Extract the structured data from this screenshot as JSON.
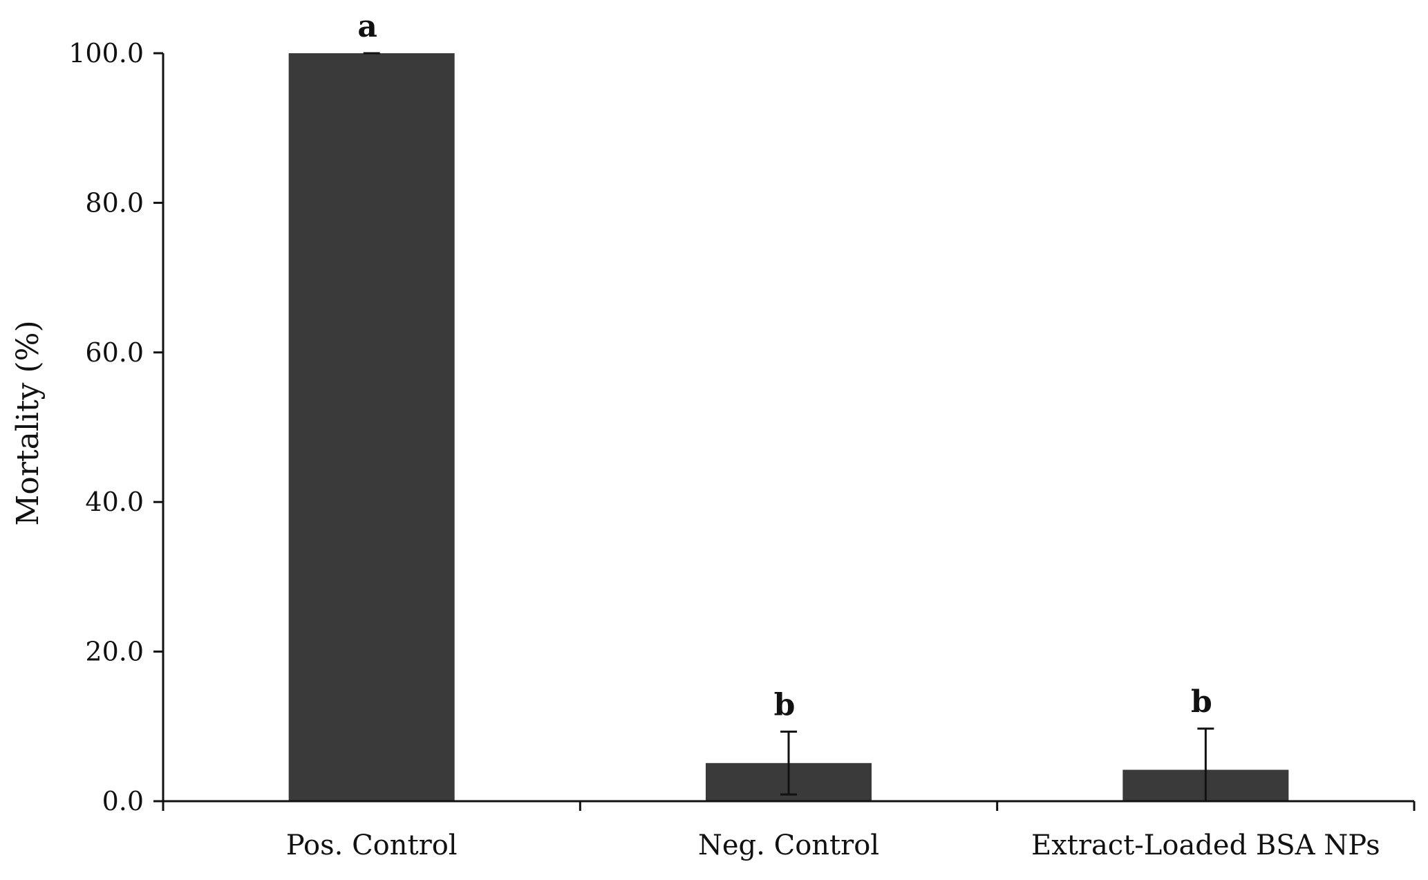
{
  "chart_data": {
    "type": "bar",
    "title": "",
    "xlabel": "",
    "ylabel": "Mortality (%)",
    "ylim": [
      0,
      100
    ],
    "yticks": [
      0,
      20,
      40,
      60,
      80,
      100
    ],
    "ytick_labels": [
      "0.0",
      "20.0",
      "40.0",
      "60.0",
      "80.0",
      "100.0"
    ],
    "categories": [
      "Pos. Control",
      "Neg. Control",
      "Extract-Loaded BSA NPs"
    ],
    "values": [
      100.0,
      5.1,
      4.2
    ],
    "error": [
      0.0,
      4.2,
      5.5
    ],
    "significance": [
      "a",
      "b",
      "b"
    ],
    "bar_color": "#3a3a3a",
    "grid": false,
    "legend": "none"
  }
}
